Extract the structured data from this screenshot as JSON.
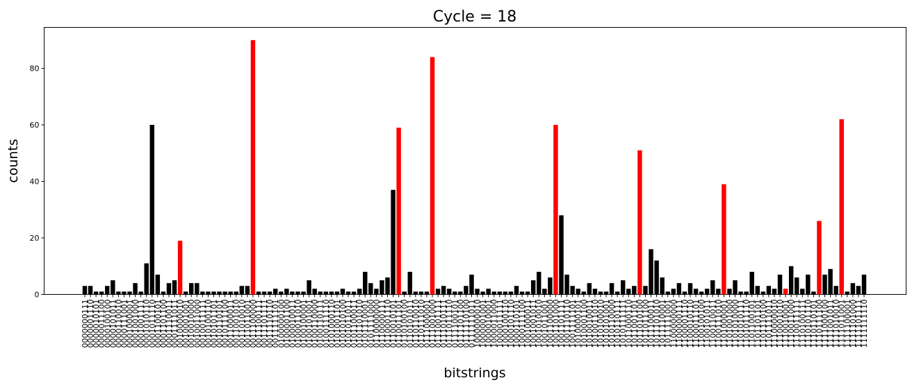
{
  "chart_data": {
    "type": "bar",
    "title": "Cycle  = 18",
    "x_label": "bitstrings",
    "y_label": "counts",
    "categories": [
      "0000000111",
      "0000001110",
      "0000010101",
      "0000011100",
      "0000100100",
      "0000101011",
      "0000110010",
      "0000111001",
      "0001000001",
      "0001001000",
      "0001001111",
      "0001010110",
      "0001011110",
      "0001100101",
      "0001101100",
      "0001110011",
      "0001111011",
      "0010000010",
      "0010001001",
      "0010010000",
      "0010011000",
      "0010011111",
      "0010100110",
      "0010101101",
      "0010110101",
      "0010111100",
      "0011000011",
      "0011001010",
      "0011010010",
      "0011011001",
      "0011100000",
      "0011100111",
      "0011101111",
      "0011110110",
      "0011111101",
      "0100000100",
      "0100001100",
      "0100010011",
      "0100011010",
      "0100100001",
      "0100101001",
      "0100110000",
      "0100110111",
      "0100111110",
      "0101000110",
      "0101001101",
      "0101010100",
      "0101011011",
      "0101100011",
      "0101101010",
      "0101110001",
      "0101111000",
      "0110000000",
      "0110000111",
      "0110001110",
      "0110010101",
      "0110011101",
      "0110100100",
      "0110101011",
      "0110110010",
      "0110111010",
      "0111000001",
      "0111001000",
      "0111001111",
      "0111010111",
      "0111011110",
      "0111100101",
      "0111101100",
      "0111110100",
      "0111111011",
      "1000000010",
      "1000001001",
      "1000010001",
      "1000011000",
      "1000011111",
      "1000100110",
      "1000101110",
      "1000110101",
      "1000111100",
      "1001000011",
      "1001001011",
      "1001010010",
      "1001011001",
      "1001100000",
      "1001101000",
      "1001101111",
      "1001110110",
      "1001111101",
      "1010000101",
      "1010001100",
      "1010010011",
      "1010011010",
      "1010100010",
      "1010101001",
      "1010110000",
      "1010110111",
      "1010111111",
      "1011000110",
      "1011001101",
      "1011010100",
      "1011011100",
      "1011100011",
      "1011101010",
      "1011110001",
      "1011111001",
      "1100000000",
      "1100000111",
      "1100001110",
      "1100010110",
      "1100011101",
      "1100100100",
      "1100101011",
      "1100110011",
      "1100111010",
      "1101000001",
      "1101001000",
      "1101010000",
      "1101010111",
      "1101011110",
      "1101100101",
      "1101101101",
      "1101110100",
      "1101111011",
      "1110000010",
      "1110001010",
      "1110010001",
      "1110011000",
      "1110011111",
      "1110100111",
      "1110101110",
      "1110110101",
      "1110111100",
      "1111000100",
      "1111001011",
      "1111010010",
      "1111011001",
      "1111100001",
      "1111101000",
      "1111101111",
      "1111111110"
    ],
    "values": [
      3,
      3,
      1,
      1,
      3,
      5,
      1,
      1,
      1,
      4,
      1,
      11,
      60,
      7,
      1,
      4,
      5,
      19,
      1,
      4,
      4,
      1,
      1,
      1,
      1,
      1,
      1,
      1,
      3,
      3,
      90,
      1,
      1,
      1,
      2,
      1,
      2,
      1,
      1,
      1,
      5,
      2,
      1,
      1,
      1,
      1,
      2,
      1,
      1,
      2,
      8,
      4,
      2,
      5,
      6,
      37,
      59,
      1,
      8,
      1,
      1,
      1,
      84,
      2,
      3,
      2,
      1,
      1,
      3,
      7,
      2,
      1,
      2,
      1,
      1,
      1,
      1,
      3,
      1,
      1,
      5,
      8,
      2,
      6,
      60,
      28,
      7,
      3,
      2,
      1,
      4,
      2,
      1,
      1,
      4,
      1,
      5,
      2,
      3,
      51,
      3,
      16,
      12,
      6,
      1,
      2,
      4,
      1,
      4,
      2,
      1,
      2,
      5,
      2,
      39,
      2,
      5,
      1,
      1,
      8,
      3,
      1,
      3,
      2,
      7,
      2,
      10,
      6,
      2,
      7,
      1,
      26,
      7,
      9,
      3,
      62,
      1,
      4,
      3,
      7
    ],
    "colors": [
      "black",
      "black",
      "black",
      "black",
      "black",
      "black",
      "black",
      "black",
      "black",
      "black",
      "black",
      "black",
      "black",
      "black",
      "black",
      "black",
      "black",
      "red",
      "black",
      "black",
      "black",
      "black",
      "black",
      "black",
      "black",
      "black",
      "black",
      "black",
      "black",
      "black",
      "red",
      "black",
      "black",
      "black",
      "black",
      "black",
      "black",
      "black",
      "black",
      "black",
      "black",
      "black",
      "black",
      "black",
      "black",
      "black",
      "black",
      "black",
      "black",
      "black",
      "black",
      "black",
      "black",
      "black",
      "black",
      "black",
      "red",
      "black",
      "black",
      "black",
      "black",
      "black",
      "red",
      "black",
      "black",
      "black",
      "black",
      "black",
      "black",
      "black",
      "black",
      "black",
      "black",
      "black",
      "black",
      "black",
      "black",
      "black",
      "black",
      "black",
      "black",
      "black",
      "black",
      "black",
      "red",
      "black",
      "black",
      "black",
      "black",
      "black",
      "black",
      "black",
      "black",
      "black",
      "black",
      "black",
      "black",
      "black",
      "black",
      "red",
      "black",
      "black",
      "black",
      "black",
      "black",
      "black",
      "black",
      "black",
      "black",
      "black",
      "black",
      "black",
      "black",
      "black",
      "red",
      "black",
      "black",
      "black",
      "black",
      "black",
      "black",
      "black",
      "black",
      "black",
      "black",
      "red",
      "black",
      "black",
      "black",
      "black",
      "black",
      "red",
      "black",
      "black",
      "black",
      "red",
      "black",
      "black",
      "black",
      "black"
    ],
    "ylim": [
      0,
      94.5
    ],
    "yticks": [
      0,
      20,
      40,
      60,
      80
    ]
  }
}
